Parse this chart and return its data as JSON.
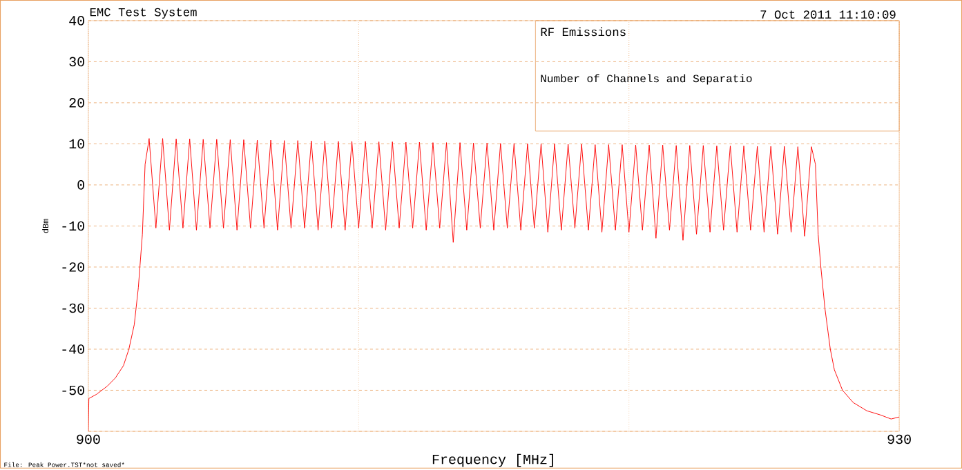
{
  "chart_data": {
    "type": "line",
    "title": "EMC Test System",
    "xlabel": "Frequency [MHz]",
    "ylabel": "dBm",
    "annotations": [
      "7 Oct 2011   11:10:09",
      "RF Emissions",
      "Number of Channels and Separatio",
      "File: Peak Power.TST*not saved*"
    ],
    "xlim": [
      900,
      930
    ],
    "ylim": [
      -60,
      40
    ],
    "xticks": [
      900,
      {
        "value": 910,
        "label": null
      },
      {
        "value": 920,
        "label": null
      },
      930
    ],
    "yticks": [
      {
        "value": -60,
        "label": null
      },
      -50,
      -40,
      -30,
      -20,
      -10,
      0,
      10,
      20,
      30,
      40
    ],
    "grid": true,
    "marker": "none",
    "line_style": "solid",
    "series": [
      {
        "color": "#ff0000",
        "x": [
          900,
          900.02,
          900.3,
          900.7,
          901,
          901.3,
          901.5,
          901.7,
          901.85,
          902,
          902.1,
          902.25,
          902.5,
          902.75,
          903,
          903.25,
          903.5,
          903.75,
          904,
          904.25,
          904.5,
          904.75,
          905,
          905.25,
          905.5,
          905.75,
          906,
          906.25,
          906.5,
          906.75,
          907,
          907.25,
          907.5,
          907.75,
          908,
          908.25,
          908.5,
          908.75,
          909,
          909.25,
          909.5,
          909.75,
          910,
          910.25,
          910.5,
          910.75,
          911,
          911.25,
          911.5,
          911.75,
          912,
          912.25,
          912.5,
          912.75,
          913,
          913.25,
          913.5,
          913.75,
          914,
          914.25,
          914.5,
          914.75,
          915,
          915.25,
          915.5,
          915.75,
          916,
          916.25,
          916.5,
          916.75,
          917,
          917.25,
          917.5,
          917.75,
          918,
          918.25,
          918.5,
          918.75,
          919,
          919.25,
          919.5,
          919.75,
          920,
          920.25,
          920.5,
          920.75,
          921,
          921.25,
          921.5,
          921.75,
          922,
          922.25,
          922.5,
          922.75,
          923,
          923.25,
          923.5,
          923.75,
          924,
          924.25,
          924.5,
          924.75,
          925,
          925.25,
          925.5,
          925.75,
          926,
          926.25,
          926.5,
          926.75,
          926.9,
          927,
          927.1,
          927.25,
          927.45,
          927.6,
          927.9,
          928.3,
          928.8,
          929.3,
          929.7,
          930
        ],
        "values": [
          -60,
          -52,
          -51,
          -49,
          -47,
          -44,
          -40,
          -34,
          -25,
          -12,
          5,
          11.3,
          -10.5,
          11.3,
          -11,
          11.2,
          -10.5,
          11.2,
          -11,
          11.1,
          -10.5,
          11.1,
          -10.5,
          11,
          -11,
          11,
          -10.5,
          10.9,
          -10.5,
          10.9,
          -11,
          10.8,
          -10.5,
          10.8,
          -10.5,
          10.7,
          -11,
          10.7,
          -10.5,
          10.6,
          -11,
          10.6,
          -10.5,
          10.6,
          -10.5,
          10.5,
          -11,
          10.5,
          -10.5,
          10.4,
          -10.5,
          10.4,
          -11,
          10.3,
          -10.5,
          10.3,
          -14,
          10.3,
          -11,
          10.2,
          -10.5,
          10.2,
          -11,
          10.1,
          -10.5,
          10.1,
          -11,
          10,
          -10.5,
          10,
          -11.5,
          10,
          -11,
          9.9,
          -10.5,
          9.9,
          -11,
          9.8,
          -11.5,
          9.8,
          -11,
          9.8,
          -11.5,
          9.7,
          -11,
          9.7,
          -13,
          9.7,
          -11,
          9.6,
          -13.5,
          9.6,
          -12,
          9.6,
          -11.5,
          9.5,
          -11,
          9.5,
          -11.5,
          9.5,
          -11,
          9.4,
          -11.5,
          9.4,
          -12,
          9.4,
          -11.5,
          9.3,
          -12.5,
          9.3,
          5,
          -12,
          -20,
          -30,
          -40,
          -45,
          -50,
          -53,
          -55,
          -56,
          -57,
          -56.5
        ]
      }
    ]
  }
}
